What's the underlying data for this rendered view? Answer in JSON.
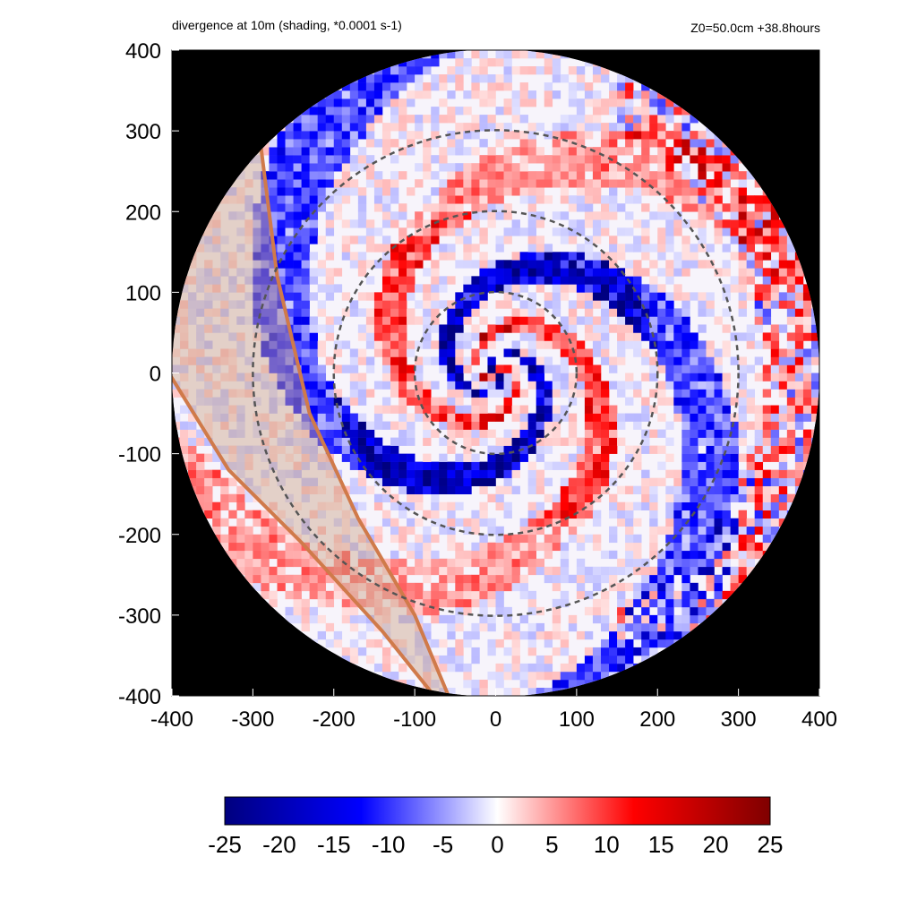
{
  "header": {
    "title": "divergence at 10m (shading, *0.0001 s-1)",
    "info": "Z0=50.0cm  +38.8hours"
  },
  "chart_data": {
    "type": "heatmap",
    "title": "divergence at 10m (shading, *0.0001 s-1)",
    "subtitle": "Z0=50.0cm  +38.8hours",
    "xlim": [
      -400,
      400
    ],
    "ylim": [
      -400,
      400
    ],
    "x_ticks": [
      -400,
      -300,
      -200,
      -100,
      0,
      100,
      200,
      300,
      400
    ],
    "y_ticks": [
      400,
      300,
      200,
      100,
      0,
      -100,
      -200,
      -300,
      -400
    ],
    "domain_radius": 400,
    "range_rings": [
      100,
      200,
      300
    ],
    "colorbar": {
      "min": -25,
      "max": 25,
      "ticks": [
        -25,
        -20,
        -15,
        -10,
        -5,
        0,
        5,
        10,
        15,
        20,
        25
      ],
      "colors": [
        "#00007f",
        "#0000ff",
        "#ffffff",
        "#ff0000",
        "#7f0000"
      ]
    },
    "colors": {
      "outside_domain": "#000000",
      "land_fill": "#c9a48a",
      "coastline": "#d07a4a",
      "rings": "#555555"
    }
  }
}
